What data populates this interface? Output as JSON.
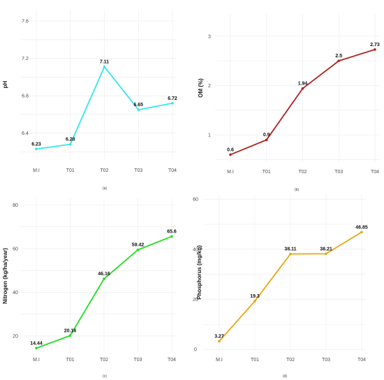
{
  "chart_data": [
    {
      "panel": "(a)",
      "type": "line",
      "ylabel": "pH",
      "xlabel": "",
      "categories": [
        "M.I",
        "T01",
        "T02",
        "T03",
        "T04"
      ],
      "values": [
        6.23,
        6.28,
        7.11,
        6.65,
        6.72
      ],
      "data_labels": [
        "6.23",
        "6.28",
        "7.11",
        "6.65",
        "6.72"
      ],
      "yticks": [
        6.4,
        6.8,
        7.2,
        7.6
      ],
      "ytick_labels": [
        "6.4",
        "6.8",
        "7.2",
        "7.6"
      ],
      "ylim": [
        6.12,
        7.72
      ],
      "color": "#33e6ec",
      "grid": true
    },
    {
      "panel": "(b)",
      "type": "line",
      "ylabel": "OM (%)",
      "xlabel": "",
      "categories": [
        "M.I",
        "T01",
        "T02",
        "T03",
        "T04"
      ],
      "values": [
        0.6,
        0.9,
        1.94,
        2.5,
        2.73
      ],
      "data_labels": [
        "0.6",
        "0.9",
        "1.94",
        "2.5",
        "2.73"
      ],
      "yticks": [
        1,
        2,
        3
      ],
      "ytick_labels": [
        "1",
        "2",
        "3"
      ],
      "ylim": [
        0.45,
        3.45
      ],
      "color": "#b22222",
      "grid": true
    },
    {
      "panel": "(c)",
      "type": "line",
      "ylabel": "Nitrogen (kg/ha/year)",
      "xlabel": "",
      "categories": [
        "M.I",
        "T01",
        "T02",
        "T03",
        "T04"
      ],
      "values": [
        14.44,
        20.16,
        46.16,
        59.42,
        65.6
      ],
      "data_labels": [
        "14.44",
        "20.16",
        "46.16",
        "59.42",
        "65.6"
      ],
      "yticks": [
        20,
        40,
        60,
        80
      ],
      "ytick_labels": [
        "20",
        "40",
        "60",
        "80"
      ],
      "ylim": [
        12,
        83
      ],
      "color": "#22dd22",
      "grid": true
    },
    {
      "panel": "(d)",
      "type": "line",
      "ylabel": "Phosphorus (mg/kg)",
      "xlabel": "",
      "categories": [
        "M.I",
        "T01",
        "T02",
        "T03",
        "T04"
      ],
      "values": [
        3.27,
        19.3,
        38.11,
        38.21,
        46.85
      ],
      "data_labels": [
        "3.27",
        "19.3",
        "38.11",
        "38.21",
        "46.85"
      ],
      "yticks": [
        0,
        20,
        40,
        60
      ],
      "ytick_labels": [
        "0",
        "20",
        "40",
        "60"
      ],
      "ylim": [
        -0.5,
        62
      ],
      "color": "#eaa510",
      "grid": true
    }
  ]
}
